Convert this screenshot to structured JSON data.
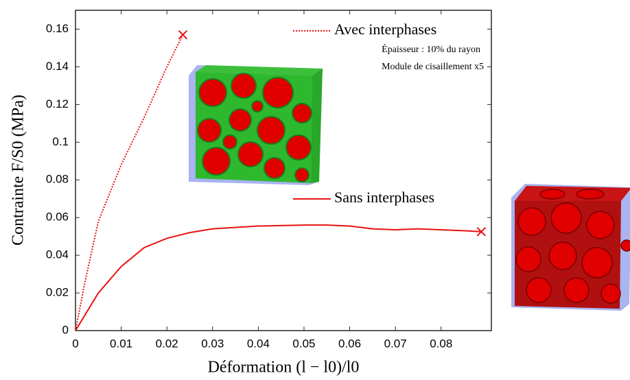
{
  "chart_data": {
    "type": "line",
    "x_label": "Déformation (l − l0)/l0",
    "y_label": "Contrainte F/S0 (MPa)",
    "xlim": [
      0,
      0.091
    ],
    "ylim": [
      0,
      0.17
    ],
    "xticks": [
      0,
      0.01,
      0.02,
      0.03,
      0.04,
      0.05,
      0.06,
      0.07,
      0.08
    ],
    "yticks": [
      0,
      0.02,
      0.04,
      0.06,
      0.08,
      0.1,
      0.12,
      0.14,
      0.16
    ],
    "series": [
      {
        "name": "Avec interphases",
        "color": "#e8110f",
        "style": "dotted",
        "x": [
          0,
          0.002,
          0.005,
          0.01,
          0.015,
          0.02,
          0.0235
        ],
        "values": [
          0,
          0.025,
          0.058,
          0.088,
          0.113,
          0.14,
          0.157
        ]
      },
      {
        "name": "Sans interphases",
        "color": "#e8110f",
        "style": "solid",
        "x": [
          0,
          0.005,
          0.01,
          0.015,
          0.02,
          0.025,
          0.03,
          0.04,
          0.05,
          0.055,
          0.06,
          0.065,
          0.07,
          0.075,
          0.08,
          0.085,
          0.0888
        ],
        "values": [
          0,
          0.02,
          0.034,
          0.044,
          0.049,
          0.052,
          0.054,
          0.0555,
          0.056,
          0.056,
          0.0555,
          0.054,
          0.0535,
          0.054,
          0.0535,
          0.053,
          0.0525
        ]
      }
    ],
    "annotations": [
      "Épaisseur : 10% du rayon",
      "Module de cisaillement x5"
    ]
  }
}
